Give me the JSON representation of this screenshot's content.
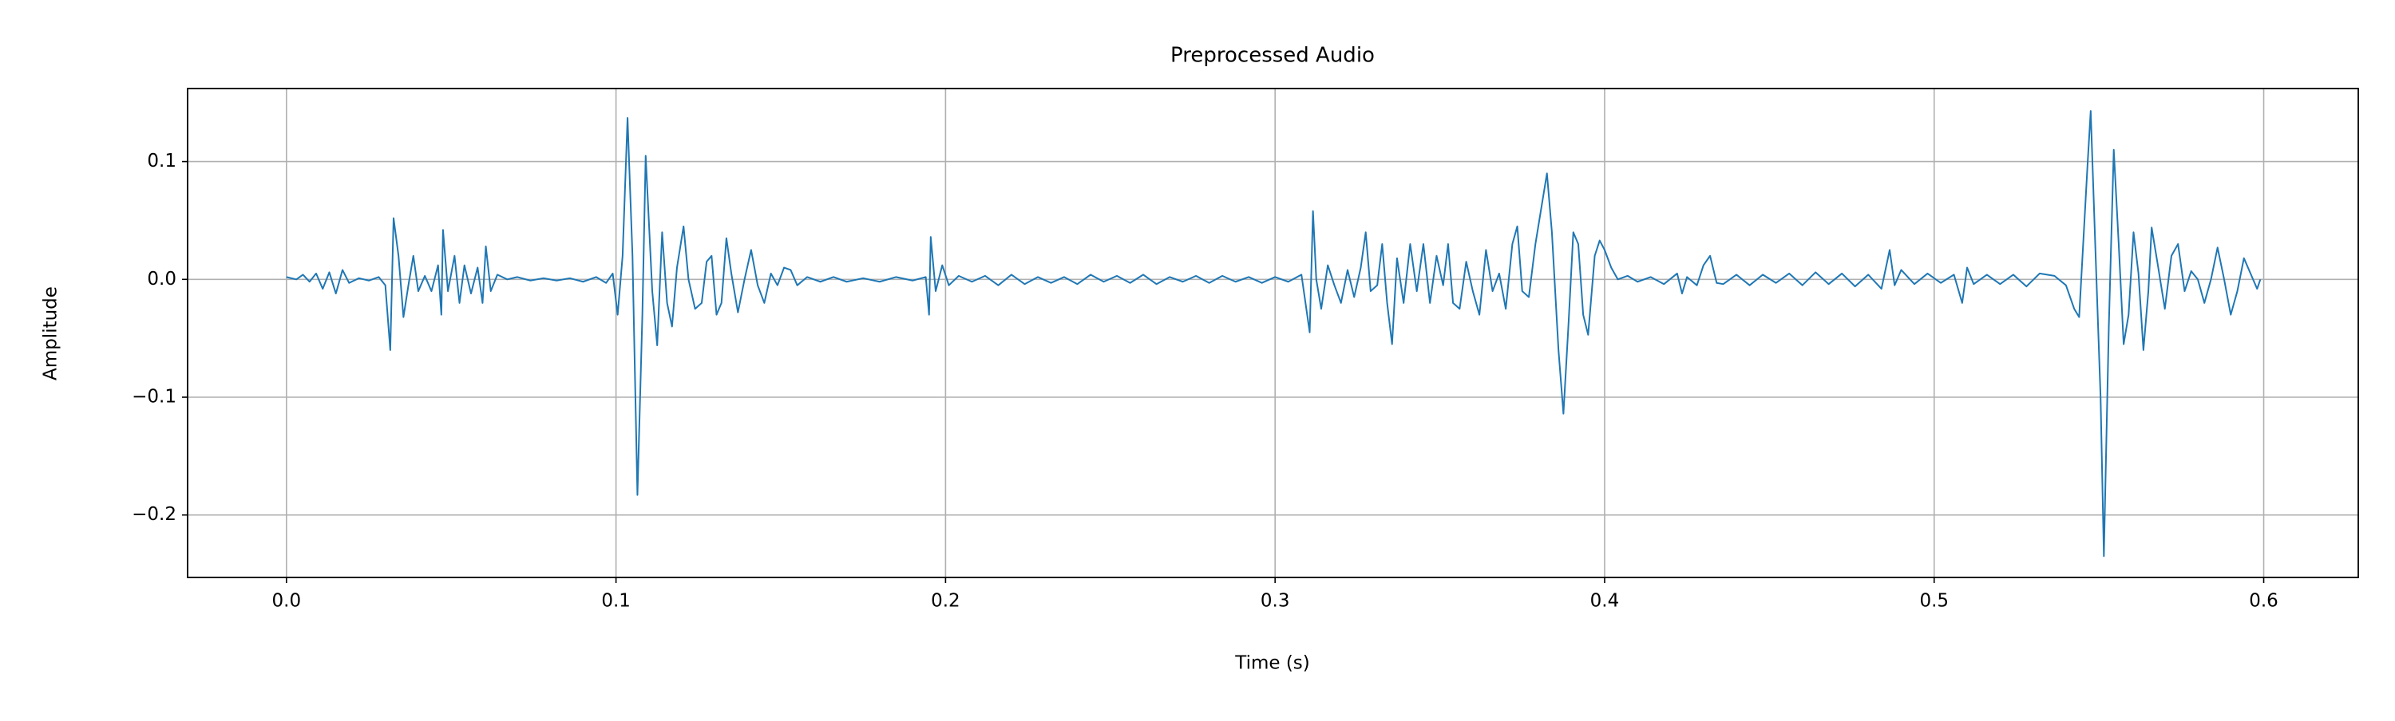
{
  "chart_data": {
    "type": "line",
    "title": "Preprocessed Audio",
    "x_label": "Time (s)",
    "y_label": "Amplitude",
    "grid": true,
    "xlim": [
      -0.03,
      0.6287
    ],
    "ylim": [
      -0.253,
      0.162
    ],
    "xticks": [
      {
        "value": 0,
        "label": "0.0"
      },
      0.1,
      0.2,
      0.3,
      0.4,
      0.5,
      0.6
    ],
    "yticks": [
      {
        "value": -0.2,
        "label": "−0.2"
      },
      {
        "value": -0.1,
        "label": "−0.1"
      },
      {
        "value": 0,
        "label": "0.0"
      },
      0.1
    ],
    "x": [
      0.0,
      0.003,
      0.005,
      0.007,
      0.009,
      0.011,
      0.013,
      0.015,
      0.017,
      0.019,
      0.022,
      0.025,
      0.028,
      0.03,
      0.0315,
      0.0325,
      0.034,
      0.0355,
      0.037,
      0.0385,
      0.04,
      0.042,
      0.044,
      0.046,
      0.047,
      0.0475,
      0.049,
      0.051,
      0.0525,
      0.054,
      0.056,
      0.058,
      0.0595,
      0.0605,
      0.062,
      0.064,
      0.067,
      0.07,
      0.074,
      0.078,
      0.082,
      0.086,
      0.09,
      0.094,
      0.097,
      0.099,
      0.1005,
      0.102,
      0.1035,
      0.105,
      0.1065,
      0.108,
      0.109,
      0.111,
      0.1125,
      0.114,
      0.1155,
      0.117,
      0.1185,
      0.1205,
      0.122,
      0.124,
      0.126,
      0.1275,
      0.129,
      0.1305,
      0.132,
      0.1335,
      0.135,
      0.137,
      0.139,
      0.141,
      0.143,
      0.145,
      0.147,
      0.149,
      0.151,
      0.153,
      0.155,
      0.158,
      0.162,
      0.166,
      0.17,
      0.175,
      0.18,
      0.185,
      0.19,
      0.194,
      0.195,
      0.1955,
      0.197,
      0.199,
      0.201,
      0.204,
      0.208,
      0.212,
      0.216,
      0.22,
      0.224,
      0.228,
      0.232,
      0.236,
      0.24,
      0.244,
      0.248,
      0.252,
      0.256,
      0.26,
      0.264,
      0.268,
      0.272,
      0.276,
      0.28,
      0.284,
      0.288,
      0.292,
      0.296,
      0.3,
      0.304,
      0.308,
      0.3105,
      0.3115,
      0.3125,
      0.314,
      0.316,
      0.318,
      0.32,
      0.322,
      0.324,
      0.326,
      0.3275,
      0.329,
      0.331,
      0.3325,
      0.334,
      0.3355,
      0.337,
      0.339,
      0.341,
      0.343,
      0.345,
      0.347,
      0.349,
      0.351,
      0.3525,
      0.354,
      0.356,
      0.358,
      0.36,
      0.362,
      0.364,
      0.366,
      0.368,
      0.37,
      0.372,
      0.3735,
      0.375,
      0.377,
      0.379,
      0.3825,
      0.384,
      0.386,
      0.3875,
      0.389,
      0.3905,
      0.392,
      0.3935,
      0.395,
      0.397,
      0.3985,
      0.4,
      0.402,
      0.404,
      0.407,
      0.41,
      0.414,
      0.418,
      0.422,
      0.4235,
      0.425,
      0.428,
      0.43,
      0.432,
      0.434,
      0.436,
      0.44,
      0.444,
      0.448,
      0.452,
      0.456,
      0.46,
      0.464,
      0.468,
      0.472,
      0.476,
      0.48,
      0.484,
      0.4865,
      0.488,
      0.49,
      0.494,
      0.498,
      0.502,
      0.506,
      0.5085,
      0.51,
      0.512,
      0.516,
      0.52,
      0.524,
      0.528,
      0.532,
      0.5365,
      0.54,
      0.5425,
      0.544,
      0.5465,
      0.5475,
      0.549,
      0.5505,
      0.5515,
      0.553,
      0.5545,
      0.556,
      0.5575,
      0.559,
      0.5605,
      0.562,
      0.5635,
      0.565,
      0.566,
      0.568,
      0.57,
      0.572,
      0.574,
      0.576,
      0.578,
      0.58,
      0.582,
      0.584,
      0.586,
      0.588,
      0.59,
      0.592,
      0.594,
      0.596,
      0.598,
      0.599
    ],
    "series": [
      {
        "color": "#1f77b4",
        "values": [
          0.002,
          0.0,
          0.004,
          -0.002,
          0.005,
          -0.008,
          0.006,
          -0.012,
          0.008,
          -0.003,
          0.001,
          -0.001,
          0.002,
          -0.005,
          -0.06,
          0.052,
          0.02,
          -0.032,
          -0.005,
          0.02,
          -0.01,
          0.003,
          -0.01,
          0.012,
          -0.03,
          0.042,
          -0.01,
          0.02,
          -0.02,
          0.012,
          -0.012,
          0.01,
          -0.02,
          0.028,
          -0.01,
          0.004,
          0.0,
          0.002,
          -0.001,
          0.001,
          -0.001,
          0.001,
          -0.002,
          0.002,
          -0.003,
          0.005,
          -0.03,
          0.02,
          0.137,
          0.02,
          -0.183,
          -0.03,
          0.105,
          -0.01,
          -0.056,
          0.04,
          -0.02,
          -0.04,
          0.01,
          0.045,
          0.0,
          -0.025,
          -0.02,
          0.015,
          0.02,
          -0.03,
          -0.02,
          0.035,
          0.005,
          -0.028,
          0.0,
          0.025,
          -0.005,
          -0.02,
          0.005,
          -0.005,
          0.01,
          0.008,
          -0.005,
          0.002,
          -0.002,
          0.002,
          -0.002,
          0.001,
          -0.002,
          0.002,
          -0.001,
          0.002,
          -0.03,
          0.036,
          -0.01,
          0.012,
          -0.005,
          0.003,
          -0.002,
          0.003,
          -0.005,
          0.004,
          -0.004,
          0.002,
          -0.003,
          0.002,
          -0.004,
          0.004,
          -0.002,
          0.003,
          -0.003,
          0.004,
          -0.004,
          0.002,
          -0.002,
          0.003,
          -0.003,
          0.003,
          -0.002,
          0.002,
          -0.003,
          0.002,
          -0.002,
          0.004,
          -0.045,
          0.058,
          0.0,
          -0.025,
          0.012,
          -0.005,
          -0.02,
          0.008,
          -0.015,
          0.01,
          0.04,
          -0.01,
          -0.005,
          0.03,
          -0.02,
          -0.055,
          0.018,
          -0.02,
          0.03,
          -0.01,
          0.03,
          -0.02,
          0.02,
          -0.005,
          0.03,
          -0.02,
          -0.025,
          0.015,
          -0.01,
          -0.03,
          0.025,
          -0.01,
          0.005,
          -0.025,
          0.03,
          0.045,
          -0.01,
          -0.015,
          0.03,
          0.09,
          0.04,
          -0.06,
          -0.114,
          -0.04,
          0.04,
          0.03,
          -0.03,
          -0.047,
          0.02,
          0.033,
          0.025,
          0.01,
          0.0,
          0.003,
          -0.002,
          0.002,
          -0.004,
          0.005,
          -0.012,
          0.002,
          -0.005,
          0.012,
          0.02,
          -0.003,
          -0.004,
          0.004,
          -0.005,
          0.004,
          -0.003,
          0.005,
          -0.005,
          0.006,
          -0.004,
          0.005,
          -0.006,
          0.004,
          -0.008,
          0.025,
          -0.005,
          0.008,
          -0.004,
          0.005,
          -0.003,
          0.004,
          -0.02,
          0.01,
          -0.004,
          0.004,
          -0.004,
          0.004,
          -0.006,
          0.005,
          0.003,
          -0.005,
          -0.025,
          -0.032,
          0.095,
          0.143,
          0.02,
          -0.1,
          -0.235,
          -0.04,
          0.11,
          0.03,
          -0.055,
          -0.03,
          0.04,
          0.005,
          -0.06,
          -0.01,
          0.044,
          0.01,
          -0.025,
          0.02,
          0.03,
          -0.01,
          0.007,
          0.0,
          -0.02,
          0.0,
          0.027,
          0.0,
          -0.03,
          -0.01,
          0.018,
          0.005,
          -0.008,
          0.0
        ]
      }
    ]
  }
}
